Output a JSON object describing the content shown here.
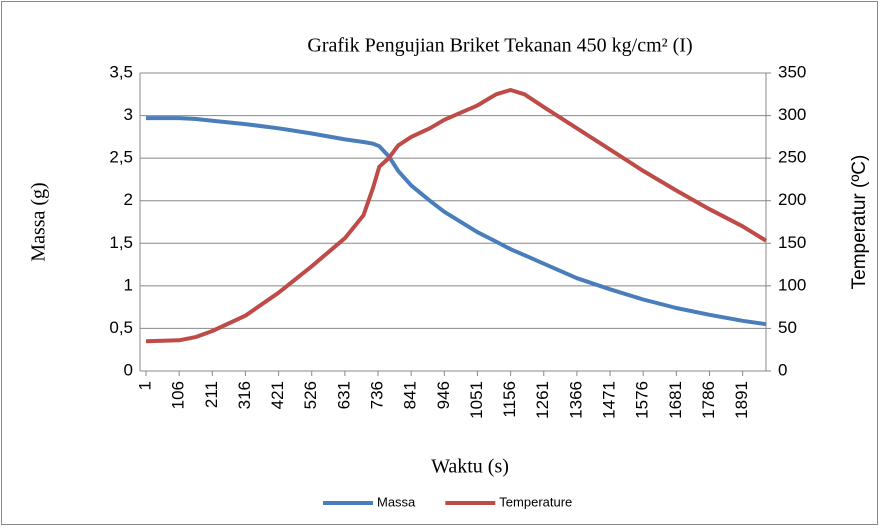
{
  "chart_data": {
    "type": "line",
    "title": "Grafik Pengujian Briket Tekanan 450 kg/cm² (I)",
    "x_label": "Waktu (s)",
    "y_label": "Massa (g)",
    "y2_label": "Temperatur (ºC)",
    "x": [
      1,
      106,
      160,
      211,
      316,
      421,
      526,
      631,
      690,
      720,
      740,
      770,
      800,
      841,
      900,
      946,
      1051,
      1110,
      1156,
      1200,
      1261,
      1366,
      1471,
      1576,
      1681,
      1786,
      1891,
      1965
    ],
    "series": [
      {
        "name": "Massa",
        "color": "#4a7ebb",
        "axis": "y",
        "values": [
          2.97,
          2.97,
          2.96,
          2.94,
          2.9,
          2.85,
          2.79,
          2.72,
          2.69,
          2.67,
          2.64,
          2.52,
          2.35,
          2.18,
          2.0,
          1.87,
          1.63,
          1.52,
          1.43,
          1.36,
          1.26,
          1.09,
          0.96,
          0.84,
          0.74,
          0.66,
          0.59,
          0.55
        ]
      },
      {
        "name": "Temperature",
        "color": "#be4b48",
        "axis": "y2",
        "values": [
          35,
          36,
          40,
          47,
          65,
          92,
          123,
          156,
          183,
          215,
          240,
          250,
          265,
          275,
          285,
          295,
          312,
          325,
          330,
          325,
          310,
          285,
          260,
          235,
          212,
          190,
          170,
          153
        ]
      }
    ],
    "xlim": [
      1,
      1965
    ],
    "xticks": [
      1,
      106,
      211,
      316,
      421,
      526,
      631,
      736,
      841,
      946,
      1051,
      1156,
      1261,
      1366,
      1471,
      1576,
      1681,
      1786,
      1891
    ],
    "ylim": [
      0,
      3.5
    ],
    "yticks": [
      0,
      {
        "value": 0.5,
        "label": "0,5"
      },
      1,
      {
        "value": 1.5,
        "label": "1,5"
      },
      2,
      {
        "value": 2.5,
        "label": "2,5"
      },
      3,
      {
        "value": 3.5,
        "label": "3,5"
      }
    ],
    "y2lim": [
      0,
      350
    ],
    "y2ticks": [
      0,
      50,
      100,
      150,
      200,
      250,
      300,
      350
    ],
    "grid": true,
    "legend": "bottom"
  }
}
